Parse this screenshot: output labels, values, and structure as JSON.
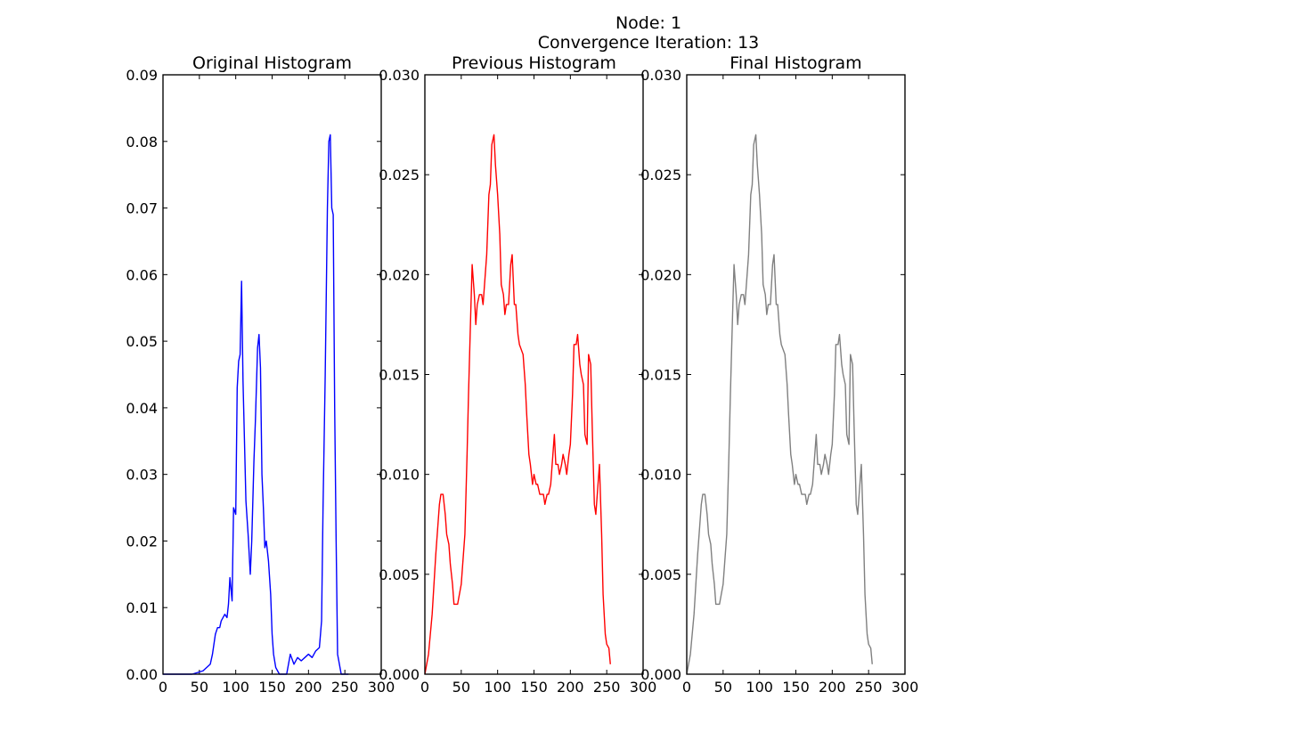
{
  "figure": {
    "suptitle_line1": "Node: 1",
    "suptitle_line2": "Convergence Iteration: 13"
  },
  "chart_data": [
    {
      "type": "line",
      "title": "Original Histogram",
      "xlabel": "",
      "ylabel": "",
      "xlim": [
        0,
        300
      ],
      "ylim": [
        0,
        0.09
      ],
      "xticks": [
        "0",
        "50",
        "100",
        "150",
        "200",
        "250",
        "300"
      ],
      "yticks": [
        "0.00",
        "0.01",
        "0.02",
        "0.03",
        "0.04",
        "0.05",
        "0.06",
        "0.07",
        "0.08",
        "0.09"
      ],
      "grid": false,
      "series": [
        {
          "color": "#0000ff",
          "x": [
            0,
            20,
            40,
            55,
            60,
            65,
            68,
            72,
            75,
            78,
            80,
            85,
            88,
            90,
            92,
            95,
            97,
            100,
            102,
            104,
            106,
            108,
            110,
            112,
            114,
            117,
            120,
            122,
            125,
            127,
            130,
            132,
            134,
            136,
            138,
            140,
            142,
            145,
            148,
            150,
            152,
            155,
            160,
            165,
            170,
            175,
            180,
            185,
            190,
            195,
            200,
            205,
            210,
            215,
            218,
            220,
            223,
            226,
            228,
            230,
            232,
            234,
            236,
            238,
            240,
            245,
            255
          ],
          "y": [
            0,
            0,
            0,
            0.0005,
            0.001,
            0.0015,
            0.003,
            0.006,
            0.007,
            0.007,
            0.008,
            0.009,
            0.0085,
            0.0105,
            0.0145,
            0.011,
            0.025,
            0.024,
            0.043,
            0.047,
            0.048,
            0.059,
            0.044,
            0.035,
            0.026,
            0.021,
            0.015,
            0.02,
            0.032,
            0.038,
            0.049,
            0.051,
            0.046,
            0.03,
            0.025,
            0.019,
            0.02,
            0.017,
            0.012,
            0.006,
            0.003,
            0.001,
            0,
            0,
            0,
            0.003,
            0.0015,
            0.0025,
            0.002,
            0.0025,
            0.003,
            0.0025,
            0.0035,
            0.004,
            0.008,
            0.025,
            0.045,
            0.07,
            0.08,
            0.081,
            0.07,
            0.069,
            0.04,
            0.02,
            0.003,
            0,
            0
          ]
        }
      ]
    },
    {
      "type": "line",
      "title": "Previous Histogram",
      "xlabel": "",
      "ylabel": "",
      "xlim": [
        0,
        300
      ],
      "ylim": [
        0,
        0.03
      ],
      "xticks": [
        "0",
        "50",
        "100",
        "150",
        "200",
        "250",
        "300"
      ],
      "yticks": [
        "0.000",
        "0.005",
        "0.010",
        "0.015",
        "0.020",
        "0.025",
        "0.030"
      ],
      "grid": false,
      "series": [
        {
          "color": "#ff0000",
          "x": [
            0,
            5,
            10,
            15,
            18,
            20,
            22,
            25,
            28,
            30,
            33,
            35,
            38,
            40,
            43,
            45,
            50,
            55,
            58,
            60,
            63,
            65,
            68,
            70,
            72,
            75,
            78,
            80,
            82,
            85,
            88,
            90,
            92,
            95,
            97,
            100,
            103,
            105,
            108,
            110,
            112,
            115,
            118,
            120,
            123,
            125,
            128,
            130,
            135,
            138,
            140,
            143,
            145,
            148,
            150,
            153,
            155,
            158,
            160,
            163,
            165,
            168,
            170,
            173,
            175,
            178,
            180,
            183,
            185,
            188,
            190,
            193,
            195,
            198,
            200,
            203,
            205,
            208,
            210,
            213,
            215,
            218,
            220,
            223,
            225,
            228,
            230,
            233,
            235,
            238,
            240,
            243,
            245,
            248,
            250,
            253,
            255
          ],
          "y": [
            0,
            0.001,
            0.003,
            0.006,
            0.0075,
            0.0085,
            0.009,
            0.009,
            0.008,
            0.007,
            0.0065,
            0.0055,
            0.0045,
            0.0035,
            0.0035,
            0.0035,
            0.0045,
            0.007,
            0.011,
            0.014,
            0.018,
            0.0205,
            0.019,
            0.0175,
            0.0185,
            0.019,
            0.019,
            0.0185,
            0.0195,
            0.021,
            0.024,
            0.0245,
            0.0265,
            0.027,
            0.0255,
            0.024,
            0.022,
            0.0195,
            0.019,
            0.018,
            0.0185,
            0.0185,
            0.0205,
            0.021,
            0.0185,
            0.0185,
            0.017,
            0.0165,
            0.016,
            0.0145,
            0.013,
            0.011,
            0.0105,
            0.0095,
            0.01,
            0.0095,
            0.0095,
            0.009,
            0.009,
            0.009,
            0.0085,
            0.009,
            0.009,
            0.0095,
            0.0105,
            0.012,
            0.0105,
            0.0105,
            0.01,
            0.0105,
            0.011,
            0.0105,
            0.01,
            0.011,
            0.0115,
            0.014,
            0.0165,
            0.0165,
            0.017,
            0.0155,
            0.015,
            0.0145,
            0.012,
            0.0115,
            0.016,
            0.0155,
            0.0125,
            0.0085,
            0.008,
            0.0095,
            0.0105,
            0.007,
            0.004,
            0.002,
            0.0015,
            0.0013,
            0.0005
          ]
        }
      ]
    },
    {
      "type": "line",
      "title": "Final Histogram",
      "xlabel": "",
      "ylabel": "",
      "xlim": [
        0,
        300
      ],
      "ylim": [
        0,
        0.03
      ],
      "xticks": [
        "0",
        "50",
        "100",
        "150",
        "200",
        "250",
        "300"
      ],
      "yticks": [
        "0.000",
        "0.005",
        "0.010",
        "0.015",
        "0.020",
        "0.025",
        "0.030"
      ],
      "grid": false,
      "series": [
        {
          "color": "#808080",
          "x": [
            0,
            5,
            10,
            15,
            18,
            20,
            22,
            25,
            28,
            30,
            33,
            35,
            38,
            40,
            43,
            45,
            50,
            55,
            58,
            60,
            63,
            65,
            68,
            70,
            72,
            75,
            78,
            80,
            82,
            85,
            88,
            90,
            92,
            95,
            97,
            100,
            103,
            105,
            108,
            110,
            112,
            115,
            118,
            120,
            123,
            125,
            128,
            130,
            135,
            138,
            140,
            143,
            145,
            148,
            150,
            153,
            155,
            158,
            160,
            163,
            165,
            168,
            170,
            173,
            175,
            178,
            180,
            183,
            185,
            188,
            190,
            193,
            195,
            198,
            200,
            203,
            205,
            208,
            210,
            213,
            215,
            218,
            220,
            223,
            225,
            228,
            230,
            233,
            235,
            238,
            240,
            243,
            245,
            248,
            250,
            253,
            255
          ],
          "y": [
            0,
            0.001,
            0.003,
            0.006,
            0.0075,
            0.0085,
            0.009,
            0.009,
            0.008,
            0.007,
            0.0065,
            0.0055,
            0.0045,
            0.0035,
            0.0035,
            0.0035,
            0.0045,
            0.007,
            0.011,
            0.014,
            0.018,
            0.0205,
            0.019,
            0.0175,
            0.0185,
            0.019,
            0.019,
            0.0185,
            0.0195,
            0.021,
            0.024,
            0.0245,
            0.0265,
            0.027,
            0.0255,
            0.024,
            0.022,
            0.0195,
            0.019,
            0.018,
            0.0185,
            0.0185,
            0.0205,
            0.021,
            0.0185,
            0.0185,
            0.017,
            0.0165,
            0.016,
            0.0145,
            0.013,
            0.011,
            0.0105,
            0.0095,
            0.01,
            0.0095,
            0.0095,
            0.009,
            0.009,
            0.009,
            0.0085,
            0.009,
            0.009,
            0.0095,
            0.0105,
            0.012,
            0.0105,
            0.0105,
            0.01,
            0.0105,
            0.011,
            0.0105,
            0.01,
            0.011,
            0.0115,
            0.014,
            0.0165,
            0.0165,
            0.017,
            0.0155,
            0.015,
            0.0145,
            0.012,
            0.0115,
            0.016,
            0.0155,
            0.0125,
            0.0085,
            0.008,
            0.0095,
            0.0105,
            0.007,
            0.004,
            0.002,
            0.0015,
            0.0013,
            0.0005
          ]
        }
      ]
    }
  ]
}
